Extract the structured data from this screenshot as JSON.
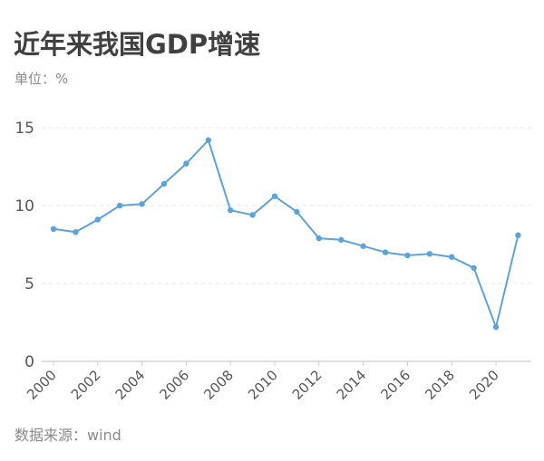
{
  "header": {
    "title": "近年来我国GDP增速",
    "unit": "单位：%"
  },
  "footer": {
    "source": "数据来源：wind"
  },
  "style": {
    "line_color": "#5ba3d9",
    "grid_color": "#e6e6e6",
    "axis_color": "#cccccc"
  },
  "chart_data": {
    "type": "line",
    "title": "近年来我国GDP增速",
    "subtitle": "单位：%",
    "xlabel": "",
    "ylabel": "%",
    "ylim": [
      0,
      15
    ],
    "yticks": [
      0,
      5,
      10,
      15
    ],
    "grid": true,
    "legend": null,
    "x": [
      2000,
      2001,
      2002,
      2003,
      2004,
      2005,
      2006,
      2007,
      2008,
      2009,
      2010,
      2011,
      2012,
      2013,
      2014,
      2015,
      2016,
      2017,
      2018,
      2019,
      2020,
      2021
    ],
    "xtick_labels": [
      "2000",
      "2002",
      "2004",
      "2006",
      "2008",
      "2010",
      "2012",
      "2014",
      "2016",
      "2018",
      "2020"
    ],
    "series": [
      {
        "name": "GDP增速",
        "values": [
          8.5,
          8.3,
          9.1,
          10.0,
          10.1,
          11.4,
          12.7,
          14.2,
          9.7,
          9.4,
          10.6,
          9.6,
          7.9,
          7.8,
          7.4,
          7.0,
          6.8,
          6.9,
          6.7,
          6.0,
          2.2,
          8.1
        ]
      }
    ],
    "annotation": "数据来源：wind"
  }
}
